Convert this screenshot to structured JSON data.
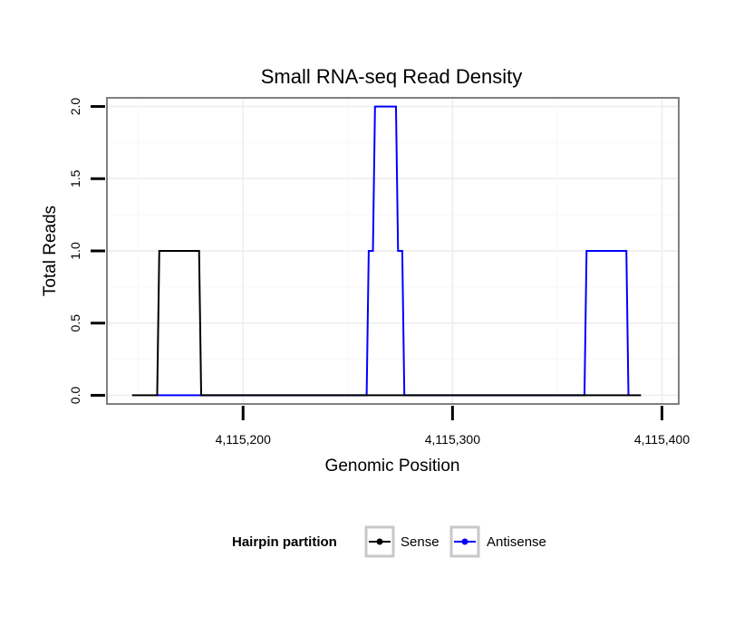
{
  "chart_data": {
    "type": "line",
    "title": "Small RNA-seq Read Density",
    "xlabel": "Genomic Position",
    "ylabel": "Total Reads",
    "xlim": [
      4115135,
      4115408
    ],
    "ylim": [
      -0.06,
      2.06
    ],
    "x_ticks": [
      4115200,
      4115300,
      4115400
    ],
    "x_tick_labels": [
      "4,115,200",
      "4,115,300",
      "4,115,400"
    ],
    "y_ticks": [
      0.0,
      0.5,
      1.0,
      1.5,
      2.0
    ],
    "y_tick_labels": [
      "0.0",
      "0.5",
      "1.0",
      "1.5",
      "2.0"
    ],
    "grid": true,
    "legend_title": "Hairpin partition",
    "legend_position": "bottom",
    "series": [
      {
        "name": "Sense",
        "color": "#000000",
        "x": [
          4115147,
          4115159,
          4115160,
          4115179,
          4115180,
          4115390
        ],
        "y": [
          0,
          0,
          1,
          1,
          0,
          0
        ]
      },
      {
        "name": "Antisense",
        "color": "#0000ff",
        "x": [
          4115159,
          4115180,
          4115259,
          4115260,
          4115262,
          4115263,
          4115273,
          4115274,
          4115276,
          4115277,
          4115284,
          4115363,
          4115364,
          4115383,
          4115384
        ],
        "y": [
          0,
          0,
          0,
          1,
          1,
          2,
          2,
          1,
          1,
          0,
          0,
          0,
          1,
          1,
          0
        ]
      }
    ]
  }
}
